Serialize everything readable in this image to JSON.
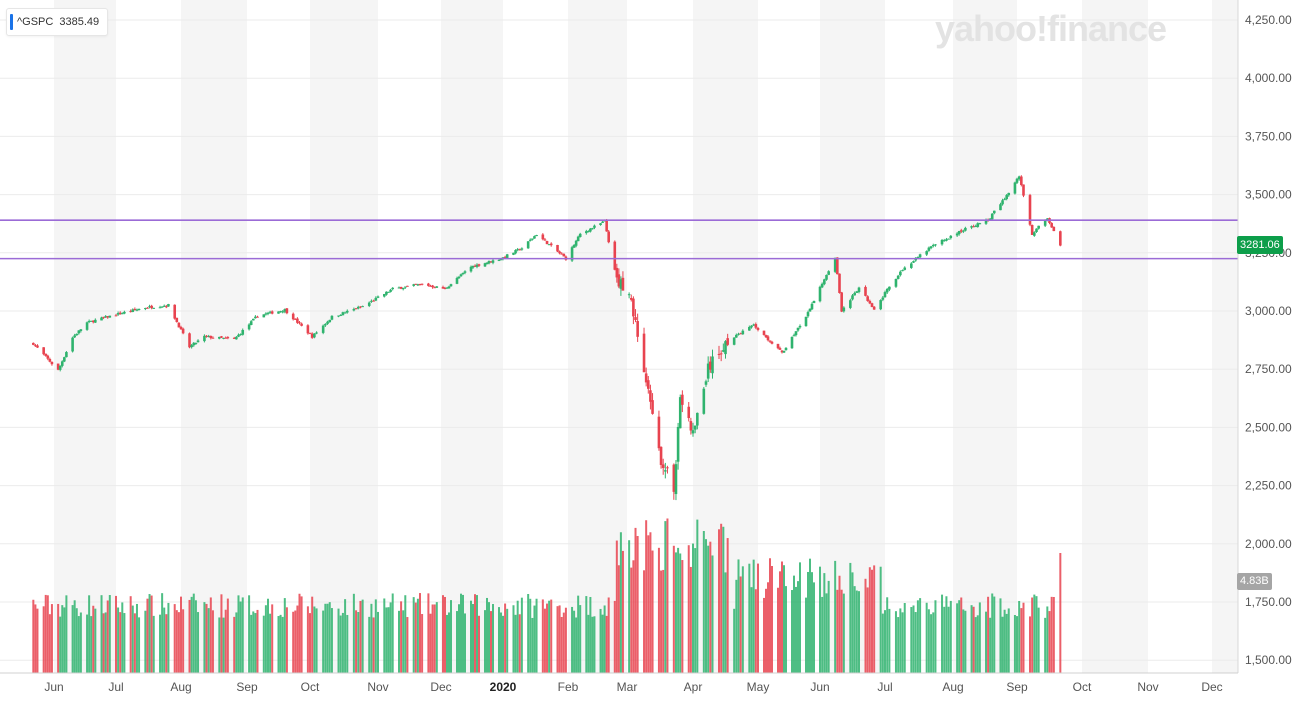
{
  "ticker": {
    "symbol": "^GSPC",
    "value": "3385.49",
    "accent": "#1a73e8"
  },
  "watermark": "yahoo!finance",
  "price_badge": "3281.06",
  "volume_badge": "4.83B",
  "colors": {
    "up": "#2fb36e",
    "down": "#e8434f",
    "hline": "#9b6bd6",
    "band": "#f5f5f5",
    "badge_up": "#0d9e4a"
  },
  "chart_data": {
    "type": "candlestick",
    "title": "",
    "xlabel": "",
    "ylabel": "",
    "ylim": [
      1440,
      4350
    ],
    "y_ticks": [
      "4,250.00",
      "4,000.00",
      "3,750.00",
      "3,500.00",
      "3,250.00",
      "3,000.00",
      "2,750.00",
      "2,500.00",
      "2,250.00",
      "2,000.00",
      "1,750.00",
      "1,500.00"
    ],
    "x_ticks": [
      "Jun",
      "Jul",
      "Aug",
      "Sep",
      "Oct",
      "Nov",
      "Dec",
      "2020",
      "Feb",
      "Mar",
      "Apr",
      "May",
      "Jun",
      "Jul",
      "Aug",
      "Sep",
      "Oct",
      "Nov",
      "Dec"
    ],
    "horizontal_lines": [
      3390,
      3225
    ],
    "last_close": 3281.06,
    "last_volume": "4.83B",
    "series": [
      {
        "name": "price",
        "points": [
          [
            "2019-05-22",
            2860
          ],
          [
            "2019-06-03",
            2745
          ],
          [
            "2019-06-10",
            2886
          ],
          [
            "2019-06-17",
            2950
          ],
          [
            "2019-07-01",
            2985
          ],
          [
            "2019-07-15",
            3015
          ],
          [
            "2019-07-26",
            3025
          ],
          [
            "2019-08-05",
            2845
          ],
          [
            "2019-08-12",
            2890
          ],
          [
            "2019-08-26",
            2878
          ],
          [
            "2019-09-06",
            2980
          ],
          [
            "2019-09-19",
            3005
          ],
          [
            "2019-10-02",
            2890
          ],
          [
            "2019-10-11",
            2975
          ],
          [
            "2019-10-25",
            3020
          ],
          [
            "2019-11-08",
            3095
          ],
          [
            "2019-11-22",
            3115
          ],
          [
            "2019-12-03",
            3095
          ],
          [
            "2019-12-16",
            3190
          ],
          [
            "2019-12-31",
            3225
          ],
          [
            "2020-01-10",
            3270
          ],
          [
            "2020-01-17",
            3330
          ],
          [
            "2020-01-31",
            3225
          ],
          [
            "2020-02-07",
            3330
          ],
          [
            "2020-02-19",
            3385
          ],
          [
            "2020-02-25",
            3130
          ],
          [
            "2020-03-02",
            3090
          ],
          [
            "2020-03-09",
            2746
          ],
          [
            "2020-03-16",
            2386
          ],
          [
            "2020-03-23",
            2237
          ],
          [
            "2020-03-26",
            2630
          ],
          [
            "2020-04-01",
            2470
          ],
          [
            "2020-04-08",
            2750
          ],
          [
            "2020-04-17",
            2875
          ],
          [
            "2020-04-29",
            2940
          ],
          [
            "2020-05-13",
            2820
          ],
          [
            "2020-05-26",
            2990
          ],
          [
            "2020-06-08",
            3232
          ],
          [
            "2020-06-11",
            3002
          ],
          [
            "2020-06-19",
            3098
          ],
          [
            "2020-06-26",
            3009
          ],
          [
            "2020-07-08",
            3170
          ],
          [
            "2020-07-22",
            3276
          ],
          [
            "2020-08-06",
            3349
          ],
          [
            "2020-08-18",
            3390
          ],
          [
            "2020-08-28",
            3508
          ],
          [
            "2020-09-02",
            3580
          ],
          [
            "2020-09-08",
            3331
          ],
          [
            "2020-09-15",
            3401
          ],
          [
            "2020-09-21",
            3281
          ]
        ]
      }
    ]
  }
}
